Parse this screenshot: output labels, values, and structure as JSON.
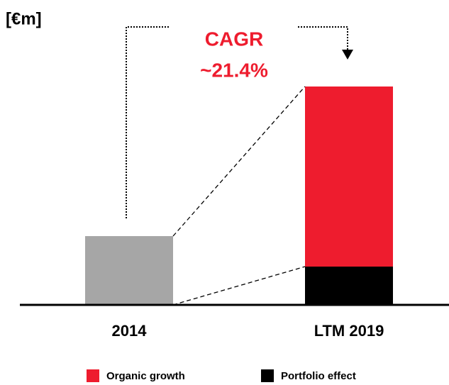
{
  "chart_data": {
    "type": "bar",
    "stacked": true,
    "unit_label": "[€m]",
    "annotations": [
      "CAGR",
      "~21.4%"
    ],
    "categories": [
      "2014",
      "LTM 2019"
    ],
    "series": [
      {
        "color": "#a6a6a6",
        "values": [
          97,
          null
        ]
      },
      {
        "name": "Organic growth",
        "color": "#ee1c2e",
        "values": [
          null,
          254
        ]
      },
      {
        "name": "Portfolio effect",
        "color": "#000000",
        "values": [
          null,
          54
        ]
      }
    ],
    "ylim": [
      0,
      330
    ]
  }
}
